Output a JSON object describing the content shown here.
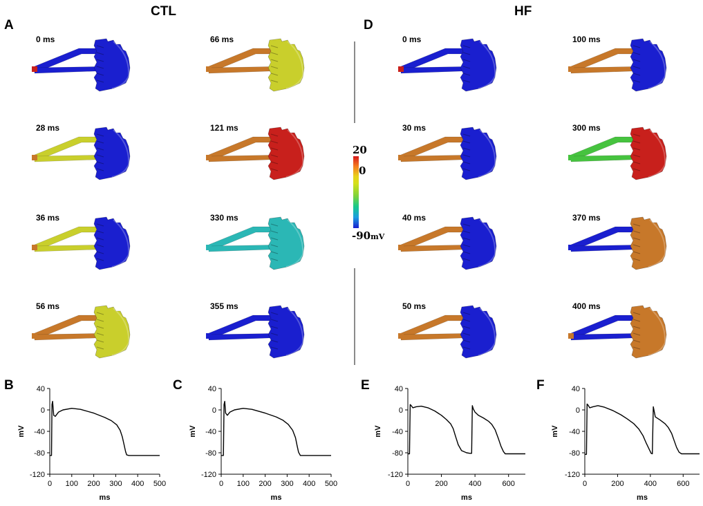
{
  "groups": {
    "ctl": "CTL",
    "hf": "HF"
  },
  "panel_letters": {
    "a": "A",
    "b": "B",
    "c": "C",
    "d": "D",
    "e": "E",
    "f": "F"
  },
  "colorbar": {
    "max": "20",
    "mid": "0",
    "min": "-90",
    "unit": "mV",
    "colors": [
      "#d7191c",
      "#e9d21a",
      "#18c98a",
      "#1a1fcf"
    ]
  },
  "frames_a": [
    {
      "time": "0 ms",
      "strut": "blue",
      "struct": "blue",
      "tip": "red"
    },
    {
      "time": "66 ms",
      "strut": "orange",
      "struct": "yellow",
      "tip": "orange"
    },
    {
      "time": "28 ms",
      "strut": "yellow",
      "struct": "blue",
      "tip": "orange"
    },
    {
      "time": "121 ms",
      "strut": "orange",
      "struct": "red",
      "tip": "orange"
    },
    {
      "time": "36 ms",
      "strut": "yellow",
      "struct": "blue",
      "tip": "orange"
    },
    {
      "time": "330 ms",
      "strut": "cyan",
      "struct": "cyan",
      "tip": "cyan"
    },
    {
      "time": "56 ms",
      "strut": "orange",
      "struct": "yellow",
      "tip": "orange"
    },
    {
      "time": "355 ms",
      "strut": "blue",
      "struct": "blue",
      "tip": "blue"
    }
  ],
  "frames_d": [
    {
      "time": "0 ms",
      "strut": "blue",
      "struct": "blue",
      "tip": "red"
    },
    {
      "time": "100 ms",
      "strut": "orange",
      "struct": "blue",
      "tip": "orange"
    },
    {
      "time": "30 ms",
      "strut": "orange",
      "struct": "blue",
      "tip": "orange"
    },
    {
      "time": "300 ms",
      "strut": "green",
      "struct": "red",
      "tip": "green"
    },
    {
      "time": "40 ms",
      "strut": "orange",
      "struct": "blue",
      "tip": "orange"
    },
    {
      "time": "370 ms",
      "strut": "blue",
      "struct": "orange",
      "tip": "blue"
    },
    {
      "time": "50 ms",
      "strut": "orange",
      "struct": "blue",
      "tip": "orange"
    },
    {
      "time": "400 ms",
      "strut": "blue",
      "struct": "orange",
      "tip": "orange"
    }
  ],
  "palette": {
    "blue": "#1a1fcf",
    "red": "#c8201c",
    "orange": "#c7782a",
    "yellow": "#c9cf2c",
    "cyan": "#2bb7b5",
    "green": "#46c33f",
    "line": "#000000"
  },
  "chart_data": [
    {
      "panel": "B",
      "type": "line",
      "xlabel": "ms",
      "ylabel": "mV",
      "xlim": [
        0,
        500
      ],
      "ylim": [
        -120,
        40
      ],
      "xticks": [
        0,
        100,
        200,
        300,
        400,
        500
      ],
      "yticks": [
        40,
        0,
        -40,
        -80,
        -120
      ],
      "series": [
        {
          "name": "CTL action potential",
          "x": [
            0,
            8,
            10,
            13,
            18,
            25,
            40,
            60,
            100,
            140,
            200,
            250,
            280,
            305,
            320,
            330,
            338,
            345,
            350,
            360,
            400,
            450,
            500
          ],
          "y": [
            -85,
            -85,
            10,
            16,
            -10,
            -12,
            -4,
            0,
            3,
            1,
            -6,
            -14,
            -20,
            -28,
            -38,
            -50,
            -65,
            -78,
            -84,
            -85,
            -85,
            -85,
            -85
          ]
        }
      ]
    },
    {
      "panel": "C",
      "type": "line",
      "xlabel": "ms",
      "ylabel": "mV",
      "xlim": [
        0,
        500
      ],
      "ylim": [
        -120,
        40
      ],
      "xticks": [
        0,
        100,
        200,
        300,
        400,
        500
      ],
      "yticks": [
        40,
        0,
        -40,
        -80,
        -120
      ],
      "series": [
        {
          "name": "CTL action potential",
          "x": [
            0,
            10,
            13,
            16,
            20,
            28,
            40,
            60,
            100,
            140,
            200,
            250,
            280,
            305,
            325,
            338,
            345,
            352,
            360,
            400,
            450,
            500
          ],
          "y": [
            -85,
            -85,
            10,
            16,
            -6,
            -10,
            -4,
            0,
            3,
            1,
            -6,
            -13,
            -19,
            -27,
            -38,
            -52,
            -66,
            -79,
            -85,
            -85,
            -85,
            -85
          ]
        }
      ]
    },
    {
      "panel": "E",
      "type": "line",
      "xlabel": "ms",
      "ylabel": "mV",
      "xlim": [
        0,
        700
      ],
      "ylim": [
        -120,
        40
      ],
      "xticks": [
        0,
        200,
        400,
        600
      ],
      "yticks": [
        40,
        0,
        -40,
        -80,
        -120
      ],
      "series": [
        {
          "name": "HF action potential",
          "x": [
            0,
            10,
            14,
            20,
            30,
            50,
            80,
            120,
            160,
            200,
            230,
            255,
            270,
            285,
            300,
            320,
            350,
            370,
            380,
            384,
            390,
            400,
            420,
            450,
            480,
            500,
            520,
            540,
            555,
            570,
            580,
            600,
            650,
            700
          ],
          "y": [
            -82,
            -82,
            10,
            8,
            4,
            6,
            7,
            4,
            -2,
            -10,
            -18,
            -26,
            -35,
            -50,
            -65,
            -76,
            -80,
            -81,
            -81,
            8,
            2,
            -4,
            -10,
            -15,
            -21,
            -27,
            -37,
            -54,
            -68,
            -78,
            -82,
            -82,
            -82,
            -82
          ]
        }
      ]
    },
    {
      "panel": "F",
      "type": "line",
      "xlabel": "ms",
      "ylabel": "mV",
      "xlim": [
        0,
        700
      ],
      "ylim": [
        -120,
        40
      ],
      "xticks": [
        0,
        200,
        400,
        600
      ],
      "yticks": [
        40,
        0,
        -40,
        -80,
        -120
      ],
      "series": [
        {
          "name": "HF action potential",
          "x": [
            0,
            10,
            14,
            20,
            30,
            50,
            80,
            120,
            170,
            220,
            260,
            300,
            330,
            355,
            375,
            395,
            405,
            412,
            418,
            430,
            460,
            490,
            510,
            530,
            545,
            560,
            575,
            590,
            620,
            660,
            700
          ],
          "y": [
            -83,
            -83,
            11,
            9,
            4,
            6,
            8,
            5,
            -1,
            -9,
            -17,
            -26,
            -36,
            -48,
            -62,
            -75,
            -81,
            -82,
            6,
            -13,
            -19,
            -26,
            -33,
            -44,
            -57,
            -70,
            -79,
            -82,
            -82,
            -82,
            -82
          ]
        }
      ]
    }
  ]
}
